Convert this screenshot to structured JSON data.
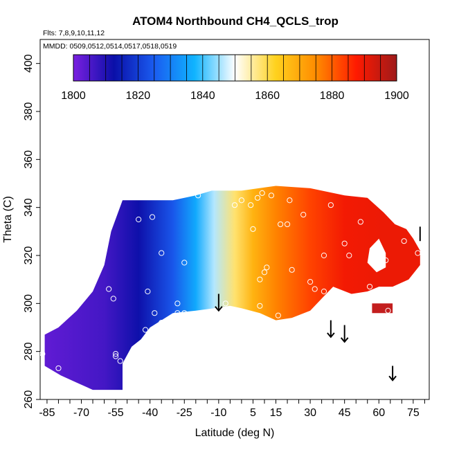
{
  "chart_data": {
    "type": "heatmap",
    "title": "ATOM4 Northbound CH4_QCLS_trop",
    "flights_note": "Flts: 7,8,9,10,11,12",
    "dates_note": "MMDD: 0509,0512,0514,0517,0518,0519",
    "xlabel": "Latitude (deg N)",
    "ylabel": "Theta (C)",
    "xlim": [
      -88,
      82
    ],
    "ylim": [
      260,
      410
    ],
    "x_ticks": [
      -85,
      -70,
      -55,
      -40,
      -25,
      -10,
      5,
      15,
      30,
      45,
      60,
      75
    ],
    "y_ticks": [
      260,
      280,
      300,
      320,
      340,
      360,
      380,
      400
    ],
    "colorbar": {
      "min": 1800,
      "max": 1900,
      "ticks": [
        1800,
        1820,
        1840,
        1860,
        1880,
        1900
      ],
      "colors": [
        "#7a1fe0",
        "#0a0fa8",
        "#1a5cf0",
        "#10b4ff",
        "#ffffff",
        "#ffd21e",
        "#ff8c00",
        "#ff1a00",
        "#9e1a1a"
      ]
    },
    "gradient_stops": [
      {
        "lat": -85,
        "ch4": 1803
      },
      {
        "lat": -60,
        "ch4": 1806
      },
      {
        "lat": -45,
        "ch4": 1812
      },
      {
        "lat": -30,
        "ch4": 1824
      },
      {
        "lat": -20,
        "ch4": 1836
      },
      {
        "lat": -12,
        "ch4": 1846
      },
      {
        "lat": -3,
        "ch4": 1858
      },
      {
        "lat": 5,
        "ch4": 1868
      },
      {
        "lat": 15,
        "ch4": 1876
      },
      {
        "lat": 30,
        "ch4": 1883
      },
      {
        "lat": 45,
        "ch4": 1889
      },
      {
        "lat": 62,
        "ch4": 1890
      }
    ],
    "data_region": [
      [
        -86,
        287
      ],
      [
        -80,
        290
      ],
      [
        -72,
        297
      ],
      [
        -65,
        305
      ],
      [
        -60,
        316
      ],
      [
        -57,
        330
      ],
      [
        -52,
        343
      ],
      [
        -30,
        343
      ],
      [
        -20,
        345
      ],
      [
        -13,
        347
      ],
      [
        0,
        347
      ],
      [
        15,
        349
      ],
      [
        30,
        348
      ],
      [
        45,
        345
      ],
      [
        55,
        344
      ],
      [
        62,
        338
      ],
      [
        67,
        333
      ],
      [
        72,
        331
      ],
      [
        75,
        327
      ],
      [
        78,
        322
      ],
      [
        78,
        316
      ],
      [
        73,
        310
      ],
      [
        66,
        307
      ],
      [
        60,
        307
      ],
      [
        55,
        305
      ],
      [
        48,
        304
      ],
      [
        40,
        307
      ],
      [
        35,
        302
      ],
      [
        30,
        297
      ],
      [
        22,
        294
      ],
      [
        15,
        293
      ],
      [
        8,
        296
      ],
      [
        0,
        298
      ],
      [
        -5,
        299
      ],
      [
        -12,
        298
      ],
      [
        -20,
        297
      ],
      [
        -30,
        296
      ],
      [
        -40,
        290
      ],
      [
        -44,
        285
      ],
      [
        -48,
        282
      ],
      [
        -52,
        275
      ],
      [
        -52,
        264
      ],
      [
        -65,
        264
      ],
      [
        -72,
        267
      ],
      [
        -79,
        270
      ],
      [
        -86,
        274
      ]
    ],
    "data_holes": [
      [
        [
          60,
          327
        ],
        [
          63,
          321
        ],
        [
          63,
          315
        ],
        [
          59,
          313
        ],
        [
          55,
          317
        ],
        [
          56,
          323
        ]
      ]
    ],
    "detached_patch": [
      [
        57,
        296
      ],
      [
        66,
        296
      ],
      [
        66,
        300
      ],
      [
        57,
        300
      ]
    ],
    "flight_points": [
      [
        -87,
        279
      ],
      [
        -80,
        273
      ],
      [
        -55,
        279
      ],
      [
        -55,
        278
      ],
      [
        -53,
        276
      ],
      [
        -58,
        306
      ],
      [
        -56,
        302
      ],
      [
        -41,
        305
      ],
      [
        -42,
        289
      ],
      [
        -35,
        292
      ],
      [
        -38,
        296
      ],
      [
        -28,
        300
      ],
      [
        -28,
        296
      ],
      [
        -25,
        296
      ],
      [
        -35,
        321
      ],
      [
        -39,
        336
      ],
      [
        -45,
        335
      ],
      [
        -25,
        317
      ],
      [
        -19,
        345
      ],
      [
        -3,
        341
      ],
      [
        -7,
        300
      ],
      [
        0,
        343
      ],
      [
        4,
        341
      ],
      [
        7,
        344
      ],
      [
        9,
        346
      ],
      [
        5,
        331
      ],
      [
        8,
        310
      ],
      [
        10,
        313
      ],
      [
        8,
        299
      ],
      [
        11,
        315
      ],
      [
        16,
        295
      ],
      [
        17,
        333
      ],
      [
        20,
        333
      ],
      [
        21,
        343
      ],
      [
        13,
        345
      ],
      [
        22,
        314
      ],
      [
        27,
        337
      ],
      [
        30,
        309
      ],
      [
        32,
        306
      ],
      [
        36,
        305
      ],
      [
        39,
        341
      ],
      [
        45,
        325
      ],
      [
        47,
        320
      ],
      [
        52,
        334
      ],
      [
        56,
        307
      ],
      [
        57,
        320
      ],
      [
        63,
        318
      ],
      [
        64,
        297
      ],
      [
        71,
        326
      ],
      [
        77,
        321
      ],
      [
        80,
        315
      ],
      [
        36,
        320
      ],
      [
        39,
        295
      ],
      [
        55,
        296
      ]
    ],
    "annotation_arrows": [
      {
        "lat": -10,
        "theta_start": 304,
        "theta_end": 297
      },
      {
        "lat": 39,
        "theta_start": 293,
        "theta_end": 286
      },
      {
        "lat": 45,
        "theta_start": 291,
        "theta_end": 284
      },
      {
        "lat": 66,
        "theta_start": 274,
        "theta_end": 268
      }
    ],
    "edge_marker": {
      "lat": 78,
      "theta_start": 332,
      "theta_end": 326
    }
  }
}
